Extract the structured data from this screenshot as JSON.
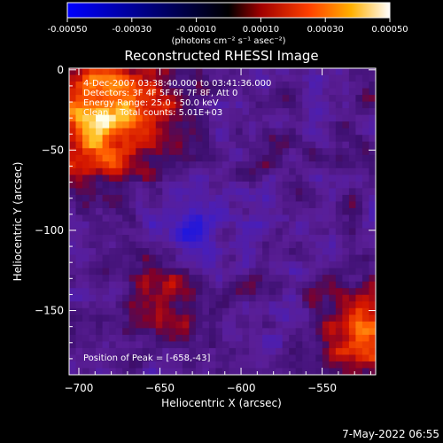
{
  "chart_data": {
    "type": "heatmap",
    "title": "Reconstructed RHESSI Image",
    "xlabel": "Heliocentric X (arcsec)",
    "ylabel": "Heliocentric Y (arcsec)",
    "xlim": [
      -706,
      -517
    ],
    "ylim": [
      -190,
      1
    ],
    "x_ticks": [
      -700,
      -650,
      -600,
      -550
    ],
    "y_ticks": [
      0,
      -50,
      -100,
      -150
    ],
    "colorbar": {
      "min": -0.0005,
      "max": 0.0005,
      "ticks": [
        "-0.00050",
        "-0.00030",
        "-0.00010",
        "0.00010",
        "0.00030",
        "0.00050"
      ],
      "unit_label": "(photons cm⁻² s⁻¹ asec⁻²)",
      "stops": [
        "#0000ff",
        "#000000",
        "#a00000",
        "#ff4000",
        "#ffb000",
        "#ffffff"
      ]
    },
    "annotations": [
      "4-Dec-2007 03:38:40.000 to 03:41:36.000",
      "Detectors: 3F 4F 5F 6F 7F 8F, Att 0",
      "Energy Range: 25.0 - 50.0 keV",
      "Clean    Total counts: 5.01E+03"
    ],
    "peak_label": "Position of Peak = [-658,-43]",
    "peak": [
      -658,
      -43
    ],
    "grid": false
  },
  "footer": {
    "timestamp": "7-May-2022 06:55"
  }
}
